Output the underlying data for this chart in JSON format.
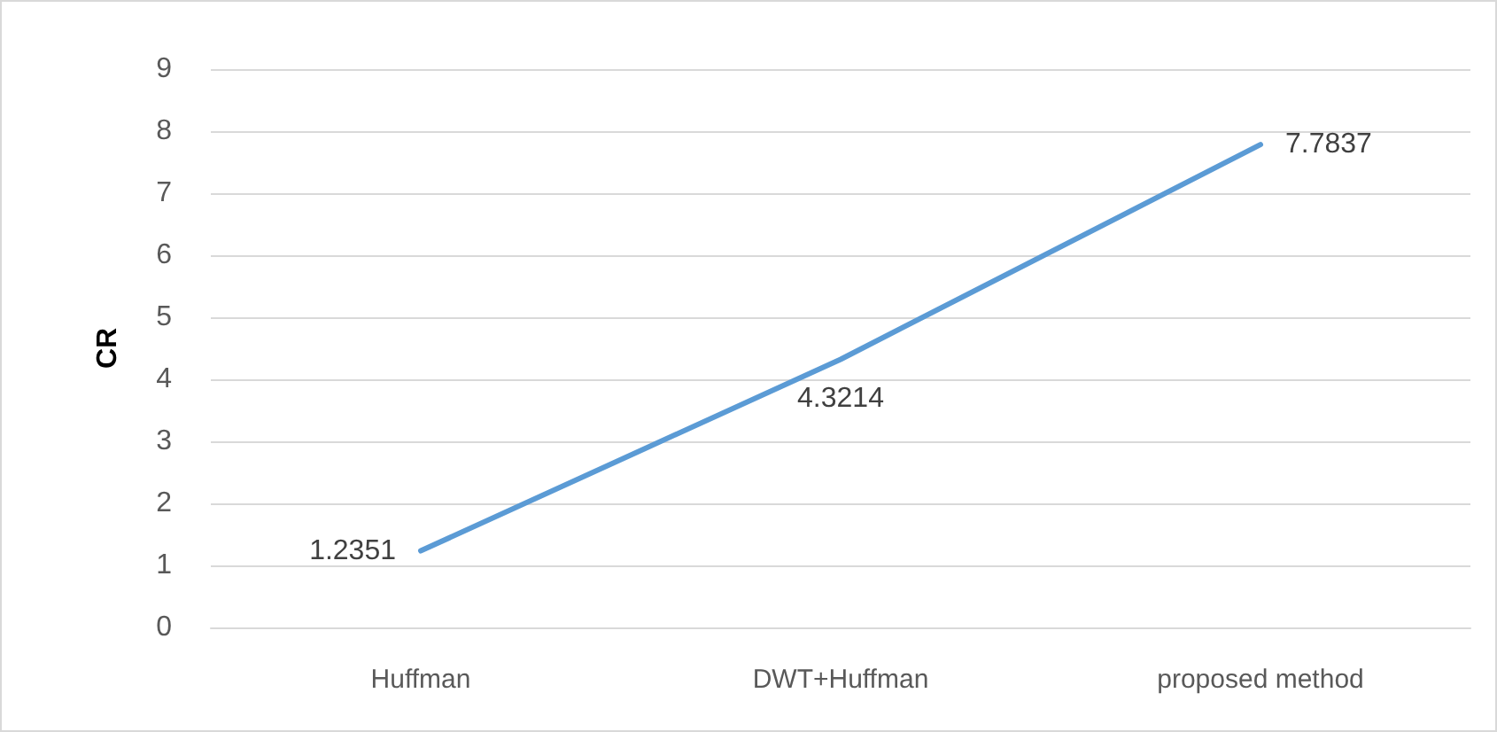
{
  "chart_data": {
    "type": "line",
    "ylabel": "CR",
    "categories": [
      "Huffman",
      "DWT+Huffman",
      "proposed method"
    ],
    "series": [
      {
        "color": "#5b9bd5",
        "values": [
          1.2351,
          4.3214,
          7.7837
        ]
      }
    ],
    "ylim": [
      0,
      9
    ],
    "yticks": [
      0,
      1,
      2,
      3,
      4,
      5,
      6,
      7,
      8,
      9
    ],
    "grid": "y",
    "data_labels": true,
    "marker": "none",
    "line_style": "solid"
  }
}
